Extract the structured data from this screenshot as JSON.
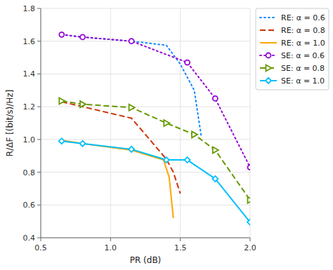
{
  "chart_data": {
    "type": "line",
    "xlabel": "PR (dB)",
    "ylabel": "R/ΔF [(bit/s)/Hz]",
    "xlim": [
      0.5,
      2.0
    ],
    "ylim": [
      0.4,
      1.8
    ],
    "xticks": [
      0.5,
      {
        "value": 1.0,
        "label": "1.0"
      },
      1.5,
      {
        "value": 2.0,
        "label": "2.0"
      }
    ],
    "yticks": [
      0.4,
      0.6,
      0.8,
      {
        "value": 1.0,
        "label": "1.0"
      },
      1.2,
      1.4,
      1.6,
      1.8
    ],
    "grid": true,
    "legend": "upper right",
    "series": [
      {
        "name": "RE: α = 0.6",
        "color": "#1589FF",
        "line_style": "dotted",
        "x": [
          0.65,
          0.8,
          1.15,
          1.4,
          1.5,
          1.6,
          1.65
        ],
        "values": [
          1.64,
          1.625,
          1.6,
          1.575,
          1.46,
          1.3,
          1.02
        ]
      },
      {
        "name": "RE: α = 0.8",
        "color": "#CC3300",
        "line_style": "dashed",
        "x": [
          0.65,
          0.8,
          1.15,
          1.4,
          1.45,
          1.5
        ],
        "values": [
          1.23,
          1.2,
          1.13,
          0.88,
          0.8,
          0.67
        ]
      },
      {
        "name": "RE: α = 1.0",
        "color": "#FFA500",
        "line_style": "solid",
        "x": [
          0.65,
          0.8,
          1.15,
          1.38,
          1.42,
          1.45
        ],
        "values": [
          0.995,
          0.975,
          0.935,
          0.875,
          0.77,
          0.52
        ]
      },
      {
        "name": "SE: α = 0.6",
        "color": "#9400D3",
        "line_style": "dotted",
        "marker": "circle",
        "x": [
          0.65,
          0.8,
          1.15,
          1.55,
          1.75,
          2.0
        ],
        "values": [
          1.64,
          1.625,
          1.6,
          1.47,
          1.25,
          0.83
        ]
      },
      {
        "name": "SE: α = 0.8",
        "color": "#669900",
        "line_style": "dashed",
        "marker": "triangle-right",
        "x": [
          0.65,
          0.8,
          1.15,
          1.4,
          1.6,
          1.75,
          2.0
        ],
        "values": [
          1.235,
          1.215,
          1.195,
          1.1,
          1.03,
          0.935,
          0.63
        ]
      },
      {
        "name": "SE: α = 1.0",
        "color": "#00BFFF",
        "line_style": "solid",
        "marker": "diamond",
        "x": [
          0.65,
          0.8,
          1.15,
          1.4,
          1.55,
          1.75,
          2.0
        ],
        "values": [
          0.99,
          0.975,
          0.94,
          0.875,
          0.875,
          0.76,
          0.495
        ]
      }
    ]
  }
}
